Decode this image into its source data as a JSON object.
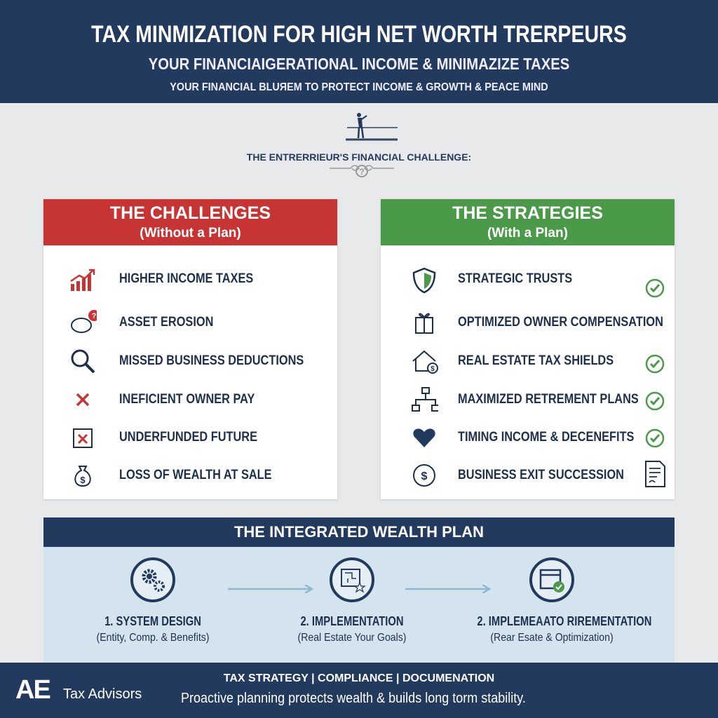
{
  "header": {
    "title": "TAX MINMIZATION FOR HIGH NET WORTH  TRERPEURS",
    "subtitle": "YOUR FINANCIAIGERATIONAL INCOME & MINIMAZIZE TAXES",
    "tagline": "YOUR FINANCIAL BLUЯEM TO PROTECT INCOME & GROWTH & PEACE MIND"
  },
  "challenge_heading": "THE ENTRERRIEUR'S FINANCIAL CHALLENGE:",
  "colors": {
    "navy": "#223a5e",
    "red": "#c73434",
    "green": "#4a9a4a",
    "light_blue": "#d3e4ee"
  },
  "challenges": {
    "title": "THE CHALLENGES",
    "subtitle": "(Without a Plan)",
    "items": [
      {
        "label": "HIGHER INCOME TAXES",
        "icon": "rising-chart-icon"
      },
      {
        "label": "ASSET EROSION",
        "icon": "piggy-bank-question-icon"
      },
      {
        "label": "MISSED BUSINESS DEDUCTIONS",
        "icon": "magnifier-icon"
      },
      {
        "label": "INEFICIENT OWNER PAY",
        "icon": "x-icon"
      },
      {
        "label": "UNDERFUNDED FUTURE",
        "icon": "calendar-x-icon"
      },
      {
        "label": "LOSS OF WEALTH AT SALE",
        "icon": "money-bag-icon"
      }
    ]
  },
  "strategies": {
    "title": "THE STRATEGIES",
    "subtitle": "(With a Plan)",
    "items": [
      {
        "label": "STRATEGIC TRUSTS",
        "icon": "shield-icon",
        "check": true
      },
      {
        "label": "OPTIMIZED OWNER COMPENSATION",
        "icon": "gift-icon",
        "check": false
      },
      {
        "label": "REAL ESTATE TAX SHIELDS",
        "icon": "house-dollar-icon",
        "check": true
      },
      {
        "label": "MAXIMIZED RETREMENT PLANS",
        "icon": "org-chart-icon",
        "check": true
      },
      {
        "label": "TIMING INCOME & DECENEFITS",
        "icon": "heart-icon",
        "check": true
      },
      {
        "label": "BUSINESS EXIT SUCCESSION",
        "icon": "dollar-circle-icon",
        "check": false
      }
    ]
  },
  "plan": {
    "title": "THE INTEGRATED WEALTH PLAN",
    "steps": [
      {
        "title": "1. SYSTEM DESIGN",
        "desc": "(Entity, Comp. & Benefits)",
        "icon": "gears-icon"
      },
      {
        "title": "2. IMPLEMENTATION",
        "desc": "(Real Estate  Your Goals)",
        "icon": "blueprint-star-icon"
      },
      {
        "title": "2. IMPLEMEAATO RIREMENTATION",
        "desc": "(Rear Esate & Optimization)",
        "icon": "calendar-check-icon"
      }
    ]
  },
  "footer": {
    "logo": "AE",
    "brand": "Tax Advisors",
    "services": "TAX STRATEGY | COMPLIANCE | DOCUMENATION",
    "slogan": "Proactive planning protects wealth & builds long torm stability."
  }
}
